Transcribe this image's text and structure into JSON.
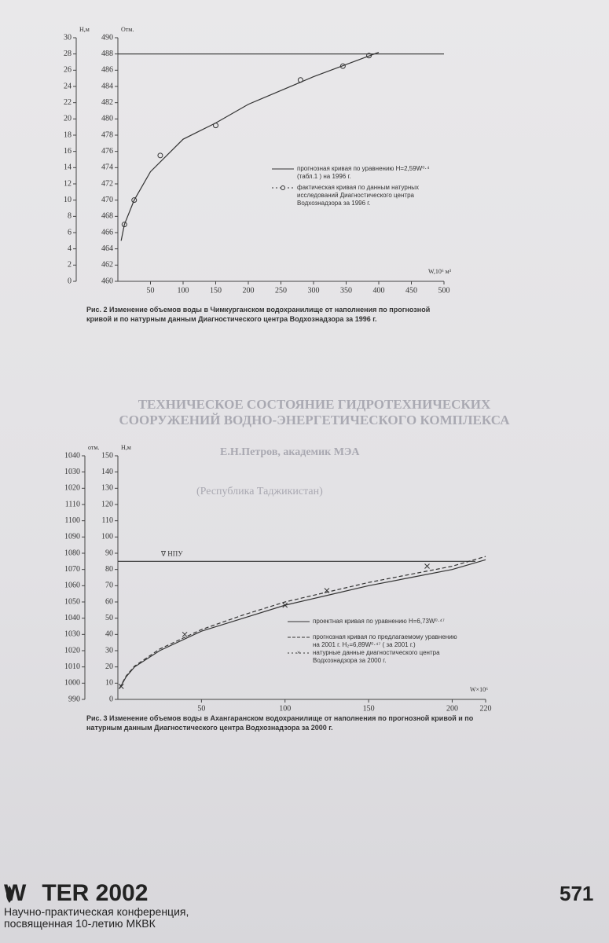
{
  "chart_data": [
    {
      "type": "line",
      "y_label": "H,м",
      "y2_label": "Отм.",
      "x_label": "W,10⁶ м³",
      "ylim": [
        0,
        30
      ],
      "yticks": [
        0,
        2,
        4,
        6,
        8,
        10,
        12,
        14,
        16,
        18,
        20,
        22,
        24,
        26,
        28,
        30
      ],
      "y2lim": [
        460,
        490
      ],
      "y2ticks": [
        460,
        462,
        464,
        466,
        468,
        470,
        472,
        474,
        476,
        478,
        480,
        482,
        484,
        486,
        488,
        490
      ],
      "xlim": [
        0,
        500
      ],
      "xticks": [
        50,
        100,
        150,
        200,
        250,
        300,
        350,
        400,
        450,
        500
      ],
      "npu": 488,
      "series": [
        {
          "name": "прогнозная кривая по уравнению H=2,59W⁰·⁴ (табл.1 ) на 1996 г.",
          "color": "#333333",
          "axis": "y2",
          "line_style": "solid",
          "marker": null,
          "x": [
            5,
            10,
            25,
            50,
            100,
            150,
            200,
            250,
            300,
            350,
            400
          ],
          "values": [
            465,
            467,
            470,
            473.5,
            477.5,
            479.5,
            481.8,
            483.5,
            485.2,
            486.7,
            488.2
          ]
        },
        {
          "name": "фактическая кривая по данным натурных исследований Диагностического центра Водхознадзора за 1996 г.",
          "color": "#333333",
          "axis": "y2",
          "line_style": "none",
          "marker": "circle",
          "x": [
            10,
            25,
            65,
            150,
            280,
            345,
            385
          ],
          "values": [
            467,
            470,
            475.5,
            479.2,
            484.8,
            486.5,
            487.8
          ]
        }
      ],
      "caption": "Рис. 2   Изменение объемов воды в Чимкурганском водохранилище от наполнения по прогнозной кривой и по натурным данным Диагностического центра Водхознадзора за 1996 г."
    },
    {
      "type": "line",
      "y_label": "H,м",
      "y2_label": "отм.",
      "x_label": "W×10⁶",
      "ylim": [
        0,
        150
      ],
      "yticks": [
        0,
        10,
        20,
        30,
        40,
        50,
        60,
        70,
        80,
        90,
        100,
        110,
        120,
        130,
        140,
        150
      ],
      "y2lim": [
        990,
        1140
      ],
      "y2ticks": [
        990,
        1000,
        1010,
        1020,
        1030,
        1040,
        1050,
        1060,
        1070,
        1080,
        1090,
        1100,
        1110,
        {
          "value": 1120,
          "label": "1020"
        },
        {
          "value": 1130,
          "label": "1030"
        },
        {
          "value": 1140,
          "label": "1040"
        }
      ],
      "xlim": [
        0,
        220
      ],
      "xticks": [
        50,
        100,
        150,
        200,
        220
      ],
      "npu": 85,
      "npu_label": "∇ НПУ",
      "series": [
        {
          "name": "проектная кривая по уравнению H=6,73W⁰·⁴⁷",
          "color": "#333333",
          "axis": "y",
          "line_style": "solid",
          "marker": null,
          "x": [
            1,
            5,
            10,
            25,
            50,
            75,
            100,
            125,
            150,
            175,
            200,
            220
          ],
          "values": [
            6.7,
            14,
            20,
            30,
            42,
            50,
            58,
            64,
            70,
            75,
            80,
            86
          ]
        },
        {
          "name": "прогнозная кривая по предлагаемому уравнению на 2001 г. H₂=6,89W⁰·⁴⁷ ( за 2001 г.)",
          "color": "#333333",
          "axis": "y",
          "line_style": "dashed",
          "marker": null,
          "x": [
            1,
            5,
            10,
            25,
            50,
            75,
            100,
            125,
            150,
            175,
            200,
            220
          ],
          "values": [
            6.9,
            14.5,
            20.5,
            31,
            43,
            52,
            60,
            66,
            72,
            77,
            82,
            88
          ]
        },
        {
          "name": "натурные данные диагностического центра Водхознадзора за 2000 г.",
          "color": "#333333",
          "axis": "y",
          "line_style": "none",
          "marker": "x",
          "x": [
            2,
            40,
            100,
            125,
            185
          ],
          "values": [
            8,
            40,
            58,
            67,
            82
          ]
        }
      ],
      "caption": "Рис. 3   Изменение объемов воды в Ахангаранском водохранилище от наполнения по прогнозной кривой и по натурным данным Диагностического центра Водхознадзора за 2000 г."
    }
  ],
  "bleed_through": {
    "heading": "ТЕХНИЧЕСКОЕ СОСТОЯНИЕ ГИДРОТЕХНИЧЕСКИХ СООРУЖЕНИЙ ВОДНО-ЭНЕРГЕТИЧЕСКОГО КОМПЛЕКСА",
    "author": "Е.Н.Петров, академик МЭА",
    "country": "(Республика Таджикистан)"
  },
  "footer": {
    "logo_start": "W",
    "logo_end": "TER 2002",
    "conference": "Научно-практическая конференция, посвященная 10-летию МКВК",
    "page_number": "571"
  }
}
